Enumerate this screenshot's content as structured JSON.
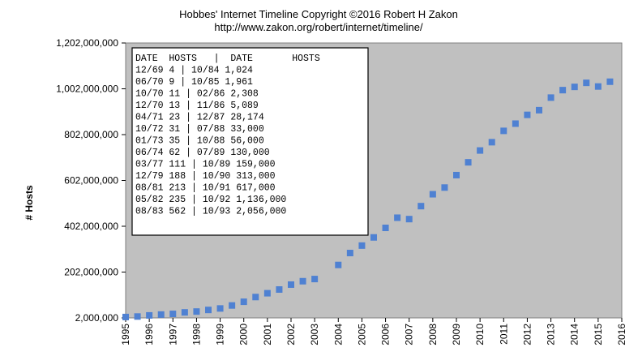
{
  "chart_data": {
    "type": "scatter",
    "title": "Hobbes' Internet Timeline Copyright ©2016 Robert H Zakon",
    "subtitle": "http://www.zakon.org/robert/internet/timeline/",
    "xlabel": "",
    "ylabel": "# Hosts",
    "xlim": [
      1995,
      2016
    ],
    "ylim": [
      2000000,
      1202000000
    ],
    "y_ticks": [
      "2,000,000",
      "202,000,000",
      "402,000,000",
      "602,000,000",
      "802,000,000",
      "1,002,000,000",
      "1,202,000,000"
    ],
    "x_ticks": [
      "1995",
      "1996",
      "1997",
      "1998",
      "1999",
      "2000",
      "2001",
      "2002",
      "2003",
      "2004",
      "2005",
      "2006",
      "2007",
      "2008",
      "2009",
      "2010",
      "2011",
      "2012",
      "2013",
      "2014",
      "2015",
      "2016"
    ],
    "grid": false,
    "plot_background": "#c0c0c0",
    "marker_color": "#4f81d2",
    "series": [
      {
        "points": [
          [
            1995.0,
            5800000
          ],
          [
            1995.5,
            8000000
          ],
          [
            1996.0,
            12900000
          ],
          [
            1996.5,
            16700000
          ],
          [
            1997.0,
            19500000
          ],
          [
            1997.5,
            26100000
          ],
          [
            1998.0,
            29700000
          ],
          [
            1998.5,
            36700000
          ],
          [
            1999.0,
            43200000
          ],
          [
            1999.5,
            56200000
          ],
          [
            2000.0,
            72400000
          ],
          [
            2000.5,
            93000000
          ],
          [
            2001.0,
            109600000
          ],
          [
            2001.5,
            125900000
          ],
          [
            2002.0,
            147300000
          ],
          [
            2002.5,
            162100000
          ],
          [
            2003.0,
            171600000
          ],
          [
            2004.0,
            233100000
          ],
          [
            2004.5,
            285100000
          ],
          [
            2005.0,
            317600000
          ],
          [
            2005.5,
            353300000
          ],
          [
            2006.0,
            394900000
          ],
          [
            2006.5,
            439300000
          ],
          [
            2007.0,
            433200000
          ],
          [
            2007.5,
            489800000
          ],
          [
            2008.0,
            541700000
          ],
          [
            2008.5,
            570900000
          ],
          [
            2009.0,
            625200000
          ],
          [
            2009.5,
            681100000
          ],
          [
            2010.0,
            732700000
          ],
          [
            2010.5,
            768900000
          ],
          [
            2011.0,
            818400000
          ],
          [
            2011.5,
            849900000
          ],
          [
            2012.0,
            888200000
          ],
          [
            2012.5,
            908600000
          ],
          [
            2013.0,
            963500000
          ],
          [
            2013.5,
            996200000
          ],
          [
            2014.0,
            1010300000
          ],
          [
            2014.5,
            1028000000
          ],
          [
            2015.0,
            1012000000
          ],
          [
            2015.5,
            1033000000
          ]
        ]
      }
    ]
  },
  "table": {
    "header": "DATE  HOSTS   |  DATE       HOSTS",
    "rows": [
      "12/69      4   |  10/84      1,024",
      "06/70      9   |  10/85      1,961",
      "10/70     11   |  02/86      2,308",
      "12/70     13   |  11/86      5,089",
      "04/71     23   |  12/87     28,174",
      "10/72     31   |  07/88     33,000",
      "01/73     35   |  10/88     56,000",
      "06/74     62   |  07/89    130,000",
      "03/77    111   |  10/89    159,000",
      "12/79    188   |  10/90    313,000",
      "08/81    213   |  10/91    617,000",
      "05/82    235   |  10/92  1,136,000",
      "08/83    562   |  10/93  2,056,000"
    ]
  }
}
